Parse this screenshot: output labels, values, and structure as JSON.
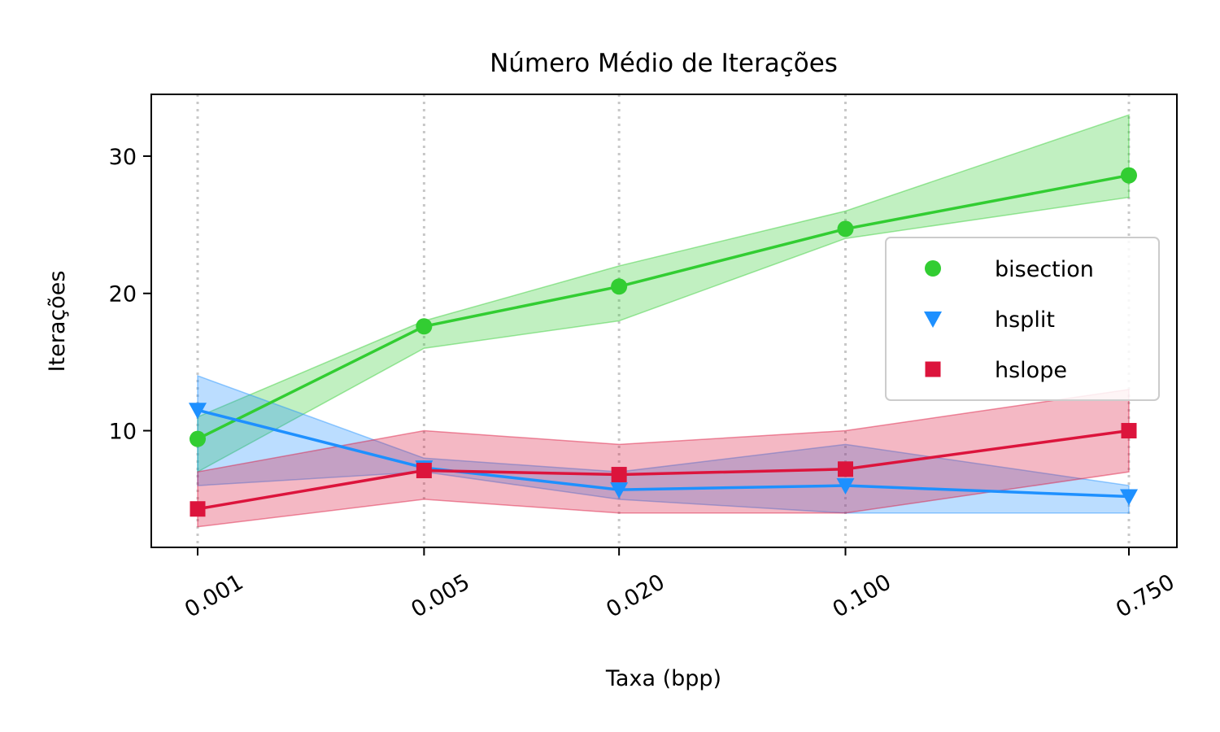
{
  "chart_data": {
    "type": "line",
    "title": "Número Médio de Iterações",
    "xlabel": "Taxa (bpp)",
    "ylabel": "Iterações",
    "categories": [
      "0.001",
      "0.005",
      "0.020",
      "0.100",
      "0.750"
    ],
    "x_scale": "log",
    "x": [
      0.001,
      0.005,
      0.02,
      0.1,
      0.75
    ],
    "ylim": [
      1.5,
      34.5
    ],
    "yticks": [
      10,
      20,
      30
    ],
    "ytick_labels": [
      "10",
      "20",
      "30"
    ],
    "grid": "vertical dotted lines at x ticks",
    "legend_position": "center-right",
    "series": [
      {
        "name": "bisection",
        "color": "#32cd32",
        "marker": "circle",
        "values": [
          9.4,
          17.6,
          20.5,
          24.7,
          28.6
        ],
        "band_low": [
          7.0,
          16.0,
          18.0,
          24.0,
          27.0
        ],
        "band_high": [
          11.0,
          18.0,
          22.0,
          26.0,
          33.0
        ]
      },
      {
        "name": "hsplit",
        "color": "#1e90ff",
        "marker": "triangle-down",
        "values": [
          11.5,
          7.3,
          5.7,
          6.0,
          5.2
        ],
        "band_low": [
          6.0,
          7.0,
          5.0,
          4.0,
          4.0
        ],
        "band_high": [
          14.0,
          8.0,
          7.0,
          9.0,
          6.0
        ]
      },
      {
        "name": "hslope",
        "color": "#dc143c",
        "marker": "square",
        "values": [
          4.3,
          7.1,
          6.8,
          7.2,
          10.0
        ],
        "band_low": [
          3.0,
          5.0,
          4.0,
          4.0,
          7.0
        ],
        "band_high": [
          7.0,
          10.0,
          9.0,
          10.0,
          13.0
        ]
      }
    ]
  }
}
